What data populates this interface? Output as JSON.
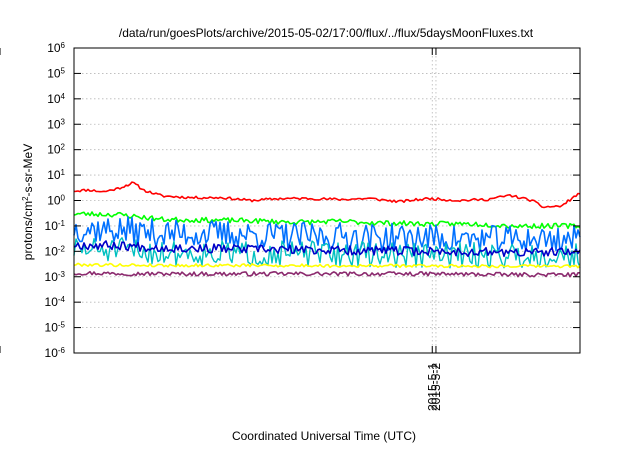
{
  "chart_data": {
    "type": "line",
    "title": "/data/run/goesPlots/archive/2015-05-02/17:00/flux/../flux/5daysMoonFluxes.txt",
    "xlabel": "Coordinated Universal Time (UTC)",
    "ylabel": {
      "prefix": "protons/cm",
      "sup": "2",
      "suffix": "-s-sr-MeV"
    },
    "y_scale": "log",
    "ylim": [
      1e-06,
      1000000.0
    ],
    "y_ticks": [
      {
        "value": 1e-06,
        "base": "10",
        "exp": "-6"
      },
      {
        "value": 1e-05,
        "base": "10",
        "exp": "-5"
      },
      {
        "value": 0.0001,
        "base": "10",
        "exp": "-4"
      },
      {
        "value": 0.001,
        "base": "10",
        "exp": "-3"
      },
      {
        "value": 0.01,
        "base": "10",
        "exp": "-2"
      },
      {
        "value": 0.1,
        "base": "10",
        "exp": "-1"
      },
      {
        "value": 1.0,
        "base": "10",
        "exp": "0"
      },
      {
        "value": 10.0,
        "base": "10",
        "exp": "1"
      },
      {
        "value": 100.0,
        "base": "10",
        "exp": "2"
      },
      {
        "value": 1000.0,
        "base": "10",
        "exp": "3"
      },
      {
        "value": 10000.0,
        "base": "10",
        "exp": "4"
      },
      {
        "value": 100000.0,
        "base": "10",
        "exp": "5"
      },
      {
        "value": 1000000.0,
        "base": "10",
        "exp": "6"
      }
    ],
    "xlim": [
      "2015-04-27T00:00",
      "2015-05-02T17:00"
    ],
    "x_ticks": [
      "2015-4-27",
      "2015-4-28",
      "2015-4-29",
      "2015-4-30",
      "2015-5-1",
      "2015-5-2"
    ],
    "grid": true,
    "series": [
      {
        "color": "#ff0000",
        "width": 1.6,
        "noise": 0.05,
        "noise_seed": 11,
        "points": [
          [
            "2015-04-27T00:00",
            2.4
          ],
          [
            "2015-04-27T04:00",
            2.6
          ],
          [
            "2015-04-27T08:00",
            2.2
          ],
          [
            "2015-04-27T12:00",
            3.0
          ],
          [
            "2015-04-27T16:00",
            5.0
          ],
          [
            "2015-04-27T19:00",
            2.5
          ],
          [
            "2015-04-28T00:00",
            1.5
          ],
          [
            "2015-04-28T08:00",
            1.3
          ],
          [
            "2015-04-28T16:00",
            1.3
          ],
          [
            "2015-04-29T00:00",
            1.0
          ],
          [
            "2015-04-29T08:00",
            1.2
          ],
          [
            "2015-04-29T16:00",
            1.2
          ],
          [
            "2015-04-30T00:00",
            1.1
          ],
          [
            "2015-04-30T08:00",
            1.2
          ],
          [
            "2015-04-30T16:00",
            0.9
          ],
          [
            "2015-05-01T00:00",
            1.2
          ],
          [
            "2015-05-01T08:00",
            1.0
          ],
          [
            "2015-05-01T16:00",
            1.1
          ],
          [
            "2015-05-01T22:00",
            1.6
          ],
          [
            "2015-05-02T04:00",
            1.0
          ],
          [
            "2015-05-02T07:00",
            0.55
          ],
          [
            "2015-05-02T12:00",
            0.6
          ],
          [
            "2015-05-02T14:00",
            1.0
          ],
          [
            "2015-05-02T17:00",
            2.0
          ]
        ]
      },
      {
        "color": "#00ff00",
        "width": 1.6,
        "noise": 0.1,
        "noise_seed": 23,
        "points": [
          [
            "2015-04-27T00:00",
            0.3
          ],
          [
            "2015-04-27T12:00",
            0.28
          ],
          [
            "2015-04-28T00:00",
            0.18
          ],
          [
            "2015-04-28T12:00",
            0.17
          ],
          [
            "2015-04-29T00:00",
            0.16
          ],
          [
            "2015-04-29T12:00",
            0.14
          ],
          [
            "2015-04-30T00:00",
            0.15
          ],
          [
            "2015-04-30T12:00",
            0.13
          ],
          [
            "2015-05-01T00:00",
            0.12
          ],
          [
            "2015-05-01T12:00",
            0.12
          ],
          [
            "2015-05-02T00:00",
            0.1
          ],
          [
            "2015-05-02T17:00",
            0.1
          ]
        ]
      },
      {
        "color": "#0070ff",
        "width": 1.6,
        "noise": 0.55,
        "noise_seed": 37,
        "points": [
          [
            "2015-04-27T00:00",
            0.08
          ],
          [
            "2015-04-27T12:00",
            0.07
          ],
          [
            "2015-04-28T00:00",
            0.05
          ],
          [
            "2015-04-28T12:00",
            0.05
          ],
          [
            "2015-04-29T00:00",
            0.045
          ],
          [
            "2015-04-29T12:00",
            0.04
          ],
          [
            "2015-04-30T00:00",
            0.04
          ],
          [
            "2015-04-30T12:00",
            0.035
          ],
          [
            "2015-05-01T00:00",
            0.035
          ],
          [
            "2015-05-01T12:00",
            0.03
          ],
          [
            "2015-05-02T00:00",
            0.03
          ],
          [
            "2015-05-02T17:00",
            0.03
          ]
        ]
      },
      {
        "color": "#00c0c0",
        "width": 1.4,
        "noise": 0.5,
        "noise_seed": 51,
        "points": [
          [
            "2015-04-27T00:00",
            0.012
          ],
          [
            "2015-04-27T12:00",
            0.011
          ],
          [
            "2015-04-28T00:00",
            0.009
          ],
          [
            "2015-04-29T00:00",
            0.008
          ],
          [
            "2015-04-30T00:00",
            0.008
          ],
          [
            "2015-05-01T00:00",
            0.007
          ],
          [
            "2015-05-02T00:00",
            0.007
          ],
          [
            "2015-05-02T17:00",
            0.007
          ]
        ]
      },
      {
        "color": "#0000c8",
        "width": 1.6,
        "noise": 0.18,
        "noise_seed": 67,
        "points": [
          [
            "2015-04-27T00:00",
            0.018
          ],
          [
            "2015-04-27T12:00",
            0.017
          ],
          [
            "2015-04-28T00:00",
            0.014
          ],
          [
            "2015-04-29T00:00",
            0.012
          ],
          [
            "2015-04-30T00:00",
            0.011
          ],
          [
            "2015-05-01T00:00",
            0.01
          ],
          [
            "2015-05-02T00:00",
            0.009
          ],
          [
            "2015-05-02T17:00",
            0.009
          ]
        ]
      },
      {
        "color": "#ffff00",
        "width": 1.6,
        "noise": 0.06,
        "noise_seed": 79,
        "points": [
          [
            "2015-04-27T00:00",
            0.003
          ],
          [
            "2015-04-28T00:00",
            0.0028
          ],
          [
            "2015-04-29T00:00",
            0.0028
          ],
          [
            "2015-04-30T00:00",
            0.0027
          ],
          [
            "2015-05-01T00:00",
            0.0027
          ],
          [
            "2015-05-02T00:00",
            0.0026
          ],
          [
            "2015-05-02T17:00",
            0.0026
          ]
        ]
      },
      {
        "color": "#8b2a6e",
        "width": 1.6,
        "noise": 0.08,
        "noise_seed": 97,
        "points": [
          [
            "2015-04-27T00:00",
            0.0014
          ],
          [
            "2015-04-28T00:00",
            0.0013
          ],
          [
            "2015-04-29T00:00",
            0.0013
          ],
          [
            "2015-04-30T00:00",
            0.0013
          ],
          [
            "2015-05-01T00:00",
            0.0013
          ],
          [
            "2015-05-02T00:00",
            0.0012
          ],
          [
            "2015-05-02T17:00",
            0.0012
          ]
        ]
      }
    ]
  }
}
